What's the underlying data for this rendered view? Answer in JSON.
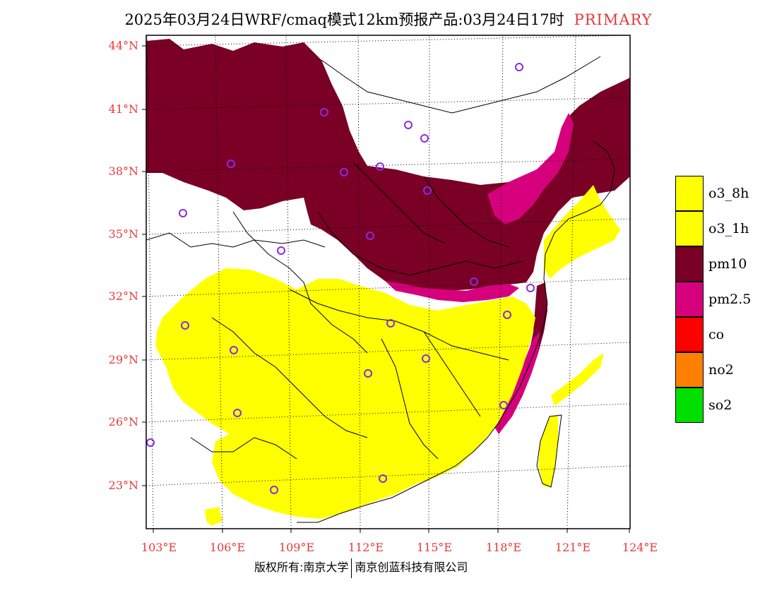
{
  "header": {
    "title": "2025年03月24日WRF/cmaq模式12km预报产品:03月24日17时",
    "tag": "PRIMARY"
  },
  "axes": {
    "lat_labels": [
      "44°N",
      "41°N",
      "38°N",
      "35°N",
      "32°N",
      "29°N",
      "26°N",
      "23°N"
    ],
    "lon_labels": [
      "103°E",
      "106°E",
      "109°E",
      "112°E",
      "115°E",
      "118°E",
      "121°E",
      "124°E"
    ]
  },
  "legend": {
    "items": [
      {
        "label": "o3_8h",
        "color": "#ffff00"
      },
      {
        "label": "o3_1h",
        "color": "#ffff00"
      },
      {
        "label": "pm10",
        "color": "#7a0026"
      },
      {
        "label": "pm2.5",
        "color": "#d6007d"
      },
      {
        "label": "co",
        "color": "#ff0000"
      },
      {
        "label": "no2",
        "color": "#ff7f00"
      },
      {
        "label": "so2",
        "color": "#00e000"
      }
    ]
  },
  "footer": {
    "copyright_left": "版权所有:南京大学",
    "copyright_right": "南京创蓝科技有限公司"
  },
  "map": {
    "region": "eastern China",
    "colors": {
      "pm10": "#7a0026",
      "pm25": "#d6007d",
      "o3": "#ffff00",
      "station": "#8a2be2",
      "boundary": "#000000"
    }
  }
}
